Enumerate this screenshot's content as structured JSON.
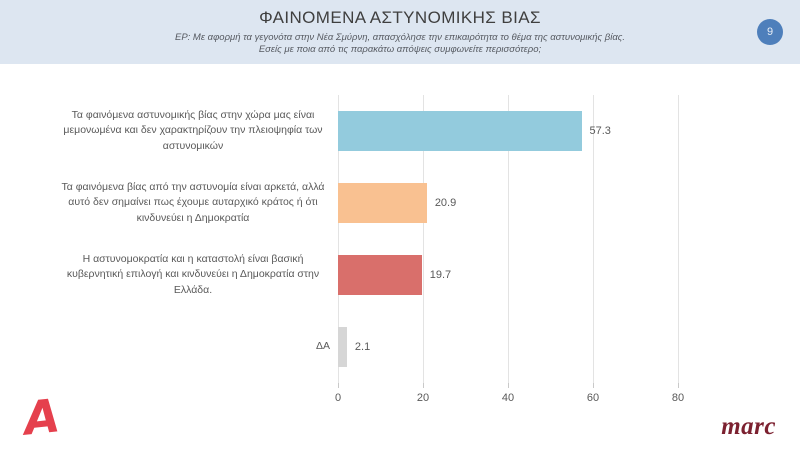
{
  "header": {
    "title": "ΦΑΙΝΟΜΕΝΑ ΑΣΤΥΝΟΜΙΚΗΣ ΒΙΑΣ",
    "subtitle_line1": "ΕΡ: Με αφορμή τα γεγονότα στην Νέα Σμύρνη,  απασχόλησε την επικαιρότητα το θέμα της αστυνομικής βίας.",
    "subtitle_line2": "Εσείς με ποια από τις παρακάτω απόψεις συμφωνείτε περισσότερο;",
    "page_number": "9"
  },
  "chart_data": {
    "type": "bar",
    "orientation": "horizontal",
    "title": "",
    "xlabel": "",
    "ylabel": "",
    "categories": [
      "Τα φαινόμενα αστυνομικής βίας στην χώρα μας είναι μεμονωμένα και δεν χαρακτηρίζουν την πλειοψηφία των αστυνομικών",
      "Τα φαινόμενα βίας από την αστυνομία είναι αρκετά, αλλά αυτό δεν σημαίνει πως έχουμε αυταρχικό κράτος ή ότι κινδυνεύει η Δημοκρατία",
      "Η αστυνομοκρατία και η καταστολή είναι βασική κυβερνητική επιλογή και κινδυνεύει η Δημοκρατία στην Ελλάδα.",
      "ΔΑ"
    ],
    "values": [
      57.3,
      20.9,
      19.7,
      2.1
    ],
    "value_labels": [
      "57.3",
      "20.9",
      "19.7",
      "2.1"
    ],
    "colors": [
      "#93cbdd",
      "#f9c191",
      "#d96f6b",
      "#d6d6d6"
    ],
    "xlim": [
      0,
      80
    ],
    "xticks": [
      0,
      20,
      40,
      60,
      80
    ],
    "grid": true,
    "legend": false
  },
  "footer": {
    "alpha_logo_text": "A",
    "marc_logo_text": "marc"
  },
  "colors": {
    "header_background": "#dde6f1",
    "badge_blue": "#4e7fbb",
    "bar_blue": "#93cbdd",
    "bar_orange": "#f9c191",
    "bar_red": "#d96f6b",
    "bar_gray": "#d6d6d6",
    "alpha_red": "#e5404d",
    "marc_maroon": "#7c2130",
    "text_gray": "#595959"
  }
}
